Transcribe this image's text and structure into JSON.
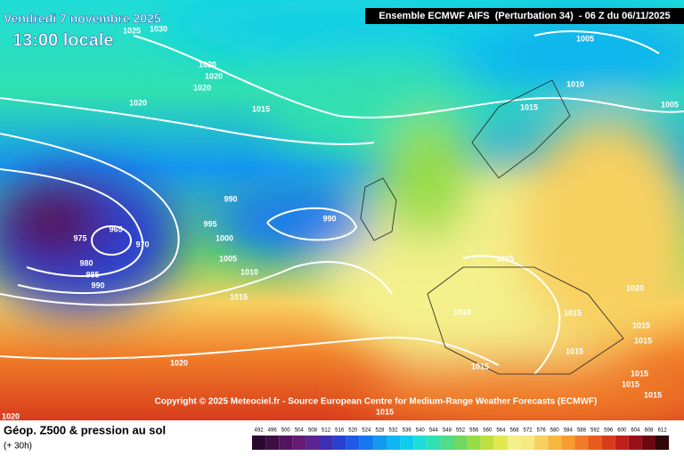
{
  "header": {
    "date": "Vendredi 7 novembre 2025",
    "time": "13:00 locale",
    "model": "Ensemble ECMWF AIFS  (Perturbation 34)  - 06 Z du 06/11/2025"
  },
  "copyright": "Copyright © 2025 Meteociel.fr - Source European Centre for Medium-Range Weather Forecasts (ECMWF)",
  "footer": {
    "title": "Géop. Z500 & pression au sol",
    "lead": "(+ 30h)"
  },
  "colorbar": {
    "ticks": [
      492,
      496,
      500,
      504,
      508,
      512,
      516,
      520,
      524,
      528,
      532,
      536,
      540,
      544,
      548,
      552,
      556,
      560,
      564,
      568,
      572,
      576,
      580,
      584,
      588,
      592,
      596,
      600,
      604,
      608,
      612
    ],
    "colors": [
      "#2a0a2e",
      "#3d0f45",
      "#52145c",
      "#661a73",
      "#5a2590",
      "#3c2fb0",
      "#2a40d0",
      "#1d5ae8",
      "#1478f0",
      "#1498f0",
      "#10b4f0",
      "#10ccec",
      "#20dcd8",
      "#30e0b0",
      "#50dc88",
      "#70d860",
      "#98dc48",
      "#c0e040",
      "#e0e850",
      "#f4f08c",
      "#f8e880",
      "#f8d060",
      "#f8b840",
      "#f89c30",
      "#f07c28",
      "#e85c20",
      "#d83c1c",
      "#c0201c",
      "#9a1018",
      "#6a0a10",
      "#300808"
    ]
  },
  "isobars": [
    "1025",
    "1030",
    "1005",
    "1020",
    "1020",
    "1020",
    "1010",
    "1020",
    "1015",
    "1015",
    "1005",
    "990",
    "990",
    "965",
    "975",
    "970",
    "995",
    "1000",
    "980",
    "985",
    "990",
    "1005",
    "1010",
    "1015",
    "1015",
    "1020",
    "1010",
    "1015",
    "1015",
    "1015",
    "1015",
    "1020",
    "1015",
    "1015",
    "1015",
    "1015",
    "1015",
    "1020"
  ]
}
